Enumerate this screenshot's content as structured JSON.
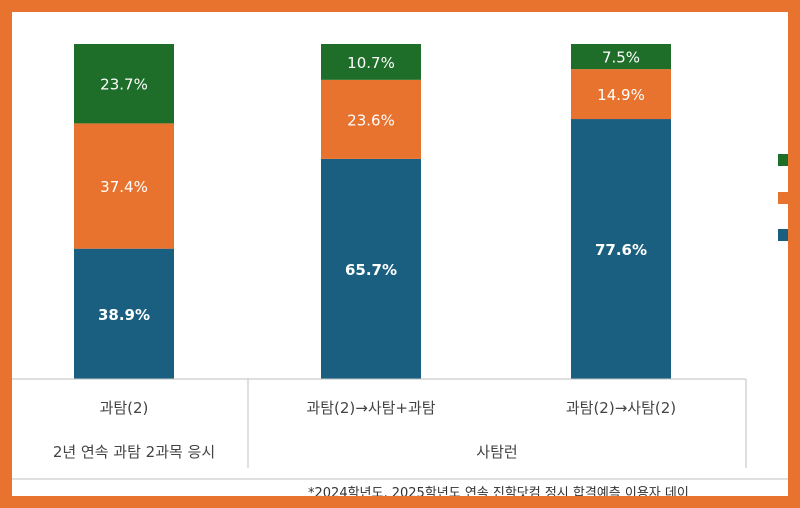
{
  "chart_data": {
    "type": "bar",
    "stacked": true,
    "value_unit": "%",
    "categories": [
      "과탐(2)",
      "과탐(2)→사탐+과탐",
      "과탐(2)→사탐(2)"
    ],
    "groups": [
      {
        "label": "2년 연속 과탐 2과목 응시",
        "categories": [
          "과탐(2)"
        ]
      },
      {
        "label": "사탐런",
        "categories": [
          "과탐(2)→사탐+과탐",
          "과탐(2)→사탐(2)"
        ]
      }
    ],
    "series": [
      {
        "values": [
          38.9,
          65.7,
          77.6
        ],
        "labels": [
          "38.9%",
          "65.7%",
          "77.6%"
        ],
        "color": "#1a5f80"
      },
      {
        "values": [
          37.4,
          23.6,
          14.9
        ],
        "labels": [
          "37.4%",
          "23.6%",
          "14.9%"
        ],
        "color": "#e8732f"
      },
      {
        "values": [
          23.7,
          10.7,
          7.5
        ],
        "labels": [
          "23.7%",
          "10.7%",
          "7.5%"
        ],
        "color": "#1e6e2a"
      }
    ],
    "ylim": [
      0,
      100
    ],
    "legend_position": "right"
  },
  "footnote": "*2024학년도, 2025학년도 연속 진학닷컴 정시 합격예측 이용자 데이"
}
